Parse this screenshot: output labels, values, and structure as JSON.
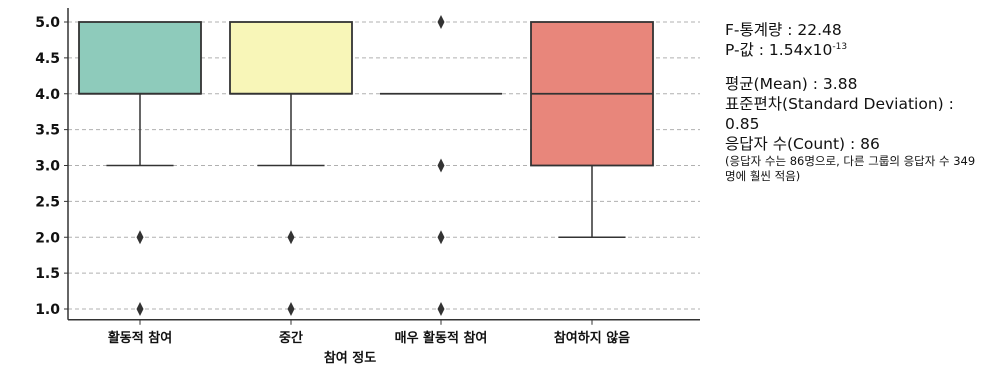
{
  "chart_data": {
    "type": "boxplot",
    "xlabel": "참여 정도",
    "ylabel": "",
    "categories": [
      "활동적 참여",
      "중간",
      "매우 활동적 참여",
      "참여하지 않음"
    ],
    "ylim": [
      0.85,
      5.1
    ],
    "yticks": [
      1.0,
      1.5,
      2.0,
      2.5,
      3.0,
      3.5,
      4.0,
      4.5,
      5.0
    ],
    "ytick_labels": [
      "1.0",
      "1.5",
      "2.0",
      "2.5",
      "3.0",
      "3.5",
      "4.0",
      "4.5",
      "5.0"
    ],
    "grid": "horizontal dashed",
    "boxes": [
      {
        "category": "활동적 참여",
        "q1": 4.0,
        "median": 4.0,
        "q3": 5.0,
        "whisker_low": 3.0,
        "whisker_high": 5.0,
        "outliers": [
          2.0,
          1.0
        ],
        "color": "#8ecbbb"
      },
      {
        "category": "중간",
        "q1": 4.0,
        "median": 4.0,
        "q3": 5.0,
        "whisker_low": 3.0,
        "whisker_high": 5.0,
        "outliers": [
          2.0,
          1.0
        ],
        "color": "#f8f6b8"
      },
      {
        "category": "매우 활동적 참여",
        "q1": 4.0,
        "median": 4.0,
        "q3": 4.0,
        "whisker_low": 4.0,
        "whisker_high": 4.0,
        "outliers": [
          5.0,
          3.0,
          2.0,
          1.0
        ],
        "color": "#c9c1e0"
      },
      {
        "category": "참여하지 않음",
        "q1": 3.0,
        "median": 4.0,
        "q3": 5.0,
        "whisker_low": 2.0,
        "whisker_high": 5.0,
        "outliers": [],
        "color": "#e8867b"
      }
    ]
  },
  "stats": {
    "f_stat": "F-통계량 : 22.48",
    "p_prefix": "P-값 : 1.54x10",
    "p_exp": "-13",
    "mean": "평균(Mean) : 3.88",
    "std_label": "표준편차(Standard Deviation) :",
    "std_value": "0.85",
    "count": "응답자 수(Count) : 86",
    "note": "(응답자 수는 86명으로, 다른 그룹의 응답자 수 349명에 훨씬 적음)"
  }
}
